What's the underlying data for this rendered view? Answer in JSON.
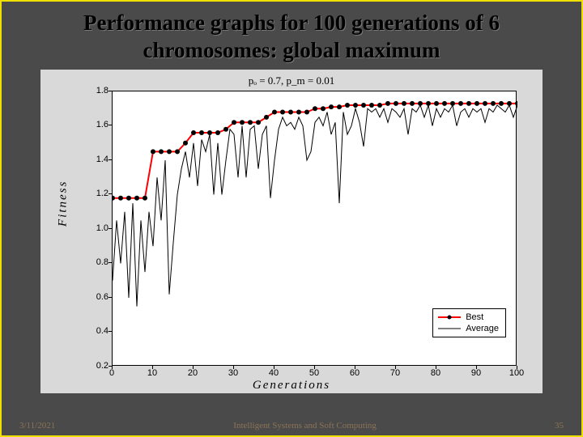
{
  "slide": {
    "title": "Performance graphs for 100 generations of 6 chromosomes: global maximum",
    "border_color": "#f0e000",
    "bg_color": "#4a4a4a"
  },
  "chart": {
    "type": "line",
    "param_text": "pₒ = 0.7,  p_m = 0.01",
    "xlabel": "Generations",
    "ylabel": "Fitness",
    "xlim": [
      0,
      100
    ],
    "ylim": [
      0.2,
      1.8
    ],
    "xticks": [
      0,
      10,
      20,
      30,
      40,
      50,
      60,
      70,
      80,
      90,
      100
    ],
    "yticks": [
      0.2,
      0.4,
      0.6,
      0.8,
      1.0,
      1.2,
      1.4,
      1.6,
      1.8
    ],
    "plot_bg": "#ffffff",
    "panel_bg": "#d9d9d9",
    "axis_color": "#000000",
    "label_fontsize": 15,
    "tick_fontsize": 11,
    "best": {
      "color": "#ff0000",
      "marker_color": "#000000",
      "marker_size": 4,
      "line_width": 2,
      "x": [
        0,
        2,
        4,
        6,
        8,
        10,
        12,
        14,
        16,
        18,
        20,
        22,
        24,
        26,
        28,
        30,
        32,
        34,
        36,
        38,
        40,
        42,
        44,
        46,
        48,
        50,
        52,
        54,
        56,
        58,
        60,
        62,
        64,
        66,
        68,
        70,
        72,
        74,
        76,
        78,
        80,
        82,
        84,
        86,
        88,
        90,
        92,
        94,
        96,
        98,
        100
      ],
      "y": [
        1.18,
        1.18,
        1.18,
        1.18,
        1.18,
        1.45,
        1.45,
        1.45,
        1.45,
        1.5,
        1.56,
        1.56,
        1.56,
        1.56,
        1.58,
        1.62,
        1.62,
        1.62,
        1.62,
        1.65,
        1.68,
        1.68,
        1.68,
        1.68,
        1.68,
        1.7,
        1.7,
        1.71,
        1.71,
        1.72,
        1.72,
        1.72,
        1.72,
        1.72,
        1.73,
        1.73,
        1.73,
        1.73,
        1.73,
        1.73,
        1.73,
        1.73,
        1.73,
        1.73,
        1.73,
        1.73,
        1.73,
        1.73,
        1.73,
        1.73,
        1.73
      ]
    },
    "average": {
      "color": "#000000",
      "line_width": 1,
      "x": [
        0,
        1,
        2,
        3,
        4,
        5,
        6,
        7,
        8,
        9,
        10,
        11,
        12,
        13,
        14,
        15,
        16,
        17,
        18,
        19,
        20,
        21,
        22,
        23,
        24,
        25,
        26,
        27,
        28,
        29,
        30,
        31,
        32,
        33,
        34,
        35,
        36,
        37,
        38,
        39,
        40,
        41,
        42,
        43,
        44,
        45,
        46,
        47,
        48,
        49,
        50,
        51,
        52,
        53,
        54,
        55,
        56,
        57,
        58,
        59,
        60,
        61,
        62,
        63,
        64,
        65,
        66,
        67,
        68,
        69,
        70,
        71,
        72,
        73,
        74,
        75,
        76,
        77,
        78,
        79,
        80,
        81,
        82,
        83,
        84,
        85,
        86,
        87,
        88,
        89,
        90,
        91,
        92,
        93,
        94,
        95,
        96,
        97,
        98,
        99,
        100
      ],
      "y": [
        0.7,
        1.05,
        0.8,
        1.1,
        0.6,
        1.15,
        0.55,
        1.05,
        0.75,
        1.1,
        0.9,
        1.3,
        1.05,
        1.4,
        0.62,
        0.92,
        1.2,
        1.35,
        1.45,
        1.3,
        1.5,
        1.25,
        1.52,
        1.45,
        1.55,
        1.2,
        1.5,
        1.2,
        1.4,
        1.58,
        1.55,
        1.3,
        1.6,
        1.3,
        1.58,
        1.6,
        1.35,
        1.55,
        1.6,
        1.18,
        1.4,
        1.58,
        1.65,
        1.6,
        1.62,
        1.58,
        1.65,
        1.6,
        1.4,
        1.45,
        1.62,
        1.65,
        1.6,
        1.68,
        1.55,
        1.62,
        1.15,
        1.68,
        1.55,
        1.6,
        1.7,
        1.62,
        1.48,
        1.7,
        1.68,
        1.7,
        1.65,
        1.7,
        1.62,
        1.7,
        1.68,
        1.65,
        1.7,
        1.55,
        1.7,
        1.68,
        1.72,
        1.65,
        1.72,
        1.6,
        1.7,
        1.65,
        1.7,
        1.68,
        1.72,
        1.6,
        1.68,
        1.7,
        1.65,
        1.7,
        1.68,
        1.7,
        1.62,
        1.7,
        1.68,
        1.72,
        1.7,
        1.68,
        1.72,
        1.65,
        1.72
      ]
    },
    "legend": {
      "items": [
        "Best",
        "Average"
      ]
    }
  },
  "footer": {
    "date": "3/11/2021",
    "center": "Intelligent Systems and Soft Computing",
    "page": "35"
  }
}
